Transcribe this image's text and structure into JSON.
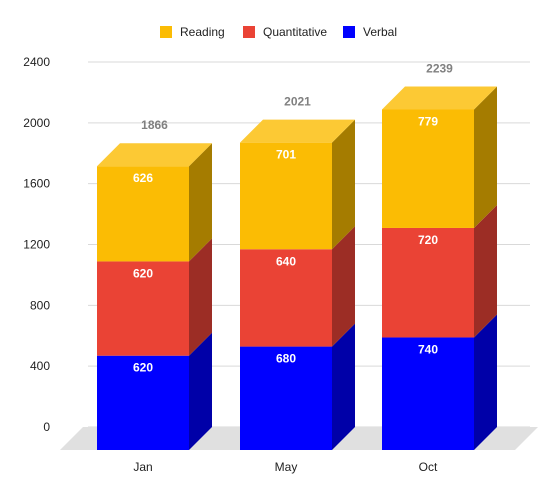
{
  "chart_data": {
    "type": "bar",
    "stacked": true,
    "three_d": true,
    "categories": [
      "Jan",
      "May",
      "Oct"
    ],
    "series": [
      {
        "name": "Verbal",
        "values": [
          620,
          680,
          740
        ],
        "color": "#0000ff",
        "side_color": "#0000a8"
      },
      {
        "name": "Quantitative",
        "values": [
          620,
          640,
          720
        ],
        "color": "#ea4335",
        "side_color": "#9c2d25"
      },
      {
        "name": "Reading",
        "values": [
          626,
          701,
          779
        ],
        "color": "#fbbc04",
        "side_color": "#a57c00",
        "top_color": "#fcc934"
      }
    ],
    "totals": [
      1866,
      2021,
      2239
    ],
    "legend_order": [
      "Reading",
      "Quantitative",
      "Verbal"
    ],
    "legend_position": "top",
    "ylim": [
      0,
      2400
    ],
    "yticks": [
      0,
      400,
      800,
      1200,
      1600,
      2000,
      2400
    ],
    "grid": true,
    "title": "",
    "xlabel": "",
    "ylabel": ""
  }
}
